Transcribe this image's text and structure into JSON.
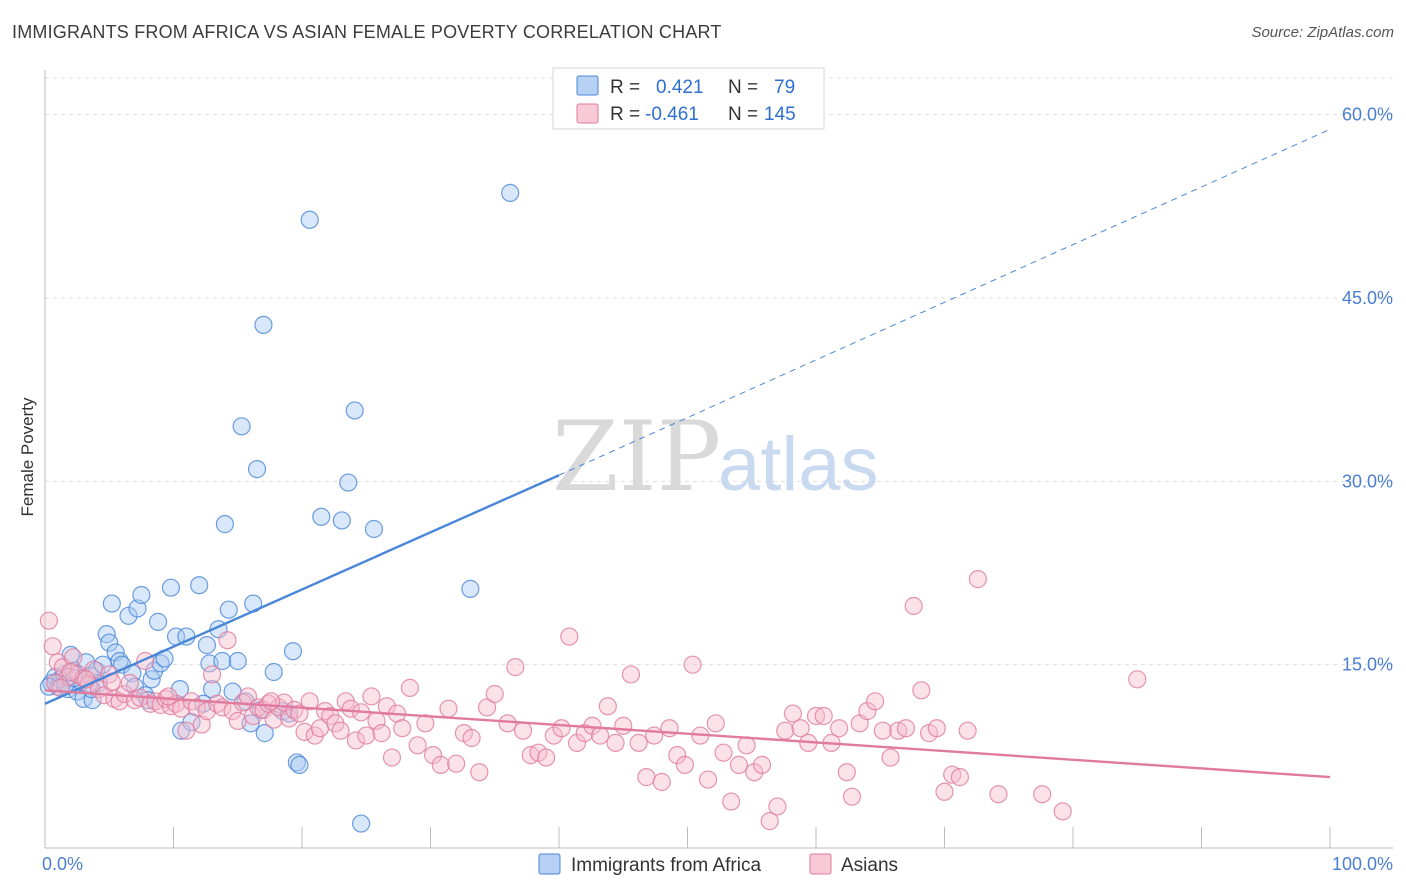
{
  "title": "IMMIGRANTS FROM AFRICA VS ASIAN FEMALE POVERTY CORRELATION CHART",
  "source": "Source: ZipAtlas.com",
  "watermark": {
    "part1": "ZIP",
    "part2": "atlas"
  },
  "legend": {
    "rows": [
      {
        "r_label": "R =",
        "r_value": "0.421",
        "n_label": "N =",
        "n_value": "79",
        "color": "#9ec2ef",
        "stroke": "#4a86d8"
      },
      {
        "r_label": "R =",
        "r_value": "-0.461",
        "n_label": "N =",
        "n_value": "145",
        "color": "#f6b8cb",
        "stroke": "#e07a9e"
      }
    ]
  },
  "bottom_legend": [
    {
      "label": "Immigrants from Africa",
      "color": "#9ec2ef",
      "stroke": "#4a86d8"
    },
    {
      "label": "Asians",
      "color": "#f6b8cb",
      "stroke": "#e07a9e"
    }
  ],
  "chart_data": {
    "type": "scatter",
    "xlabel": "",
    "ylabel": "Female Poverty",
    "xlim": [
      0,
      100
    ],
    "ylim": [
      0,
      63
    ],
    "x_tick_labels": [
      "0.0%",
      "100.0%"
    ],
    "y_ticks": [
      15,
      30,
      45,
      60
    ],
    "y_tick_labels": [
      "15.0%",
      "30.0%",
      "45.0%",
      "60.0%"
    ],
    "grid": true,
    "series": [
      {
        "name": "Immigrants from Africa",
        "color": "#4a86d8",
        "fill": "#a9c9f2",
        "trend": {
          "x0": 0,
          "y0": 11.8,
          "x1": 40,
          "y1": 30.5,
          "dashed_to_x": 100,
          "dashed_to_y": 58.8
        },
        "points": [
          [
            0.5,
            13.5
          ],
          [
            0.8,
            14.0
          ],
          [
            1.0,
            13.2
          ],
          [
            1.2,
            13.8
          ],
          [
            1.5,
            14.2
          ],
          [
            1.8,
            13.0
          ],
          [
            2.0,
            15.8
          ],
          [
            2.2,
            14.5
          ],
          [
            2.5,
            12.8
          ],
          [
            2.8,
            13.6
          ],
          [
            3.0,
            12.2
          ],
          [
            3.2,
            15.2
          ],
          [
            3.5,
            14.1
          ],
          [
            3.7,
            12.1
          ],
          [
            4.0,
            14.5
          ],
          [
            4.2,
            13.5
          ],
          [
            4.5,
            15.0
          ],
          [
            4.8,
            17.5
          ],
          [
            5.0,
            16.8
          ],
          [
            5.2,
            20.0
          ],
          [
            5.5,
            16.0
          ],
          [
            5.8,
            15.3
          ],
          [
            6.0,
            15.0
          ],
          [
            6.5,
            19.0
          ],
          [
            6.8,
            14.3
          ],
          [
            7.0,
            13.2
          ],
          [
            7.2,
            19.6
          ],
          [
            7.5,
            20.7
          ],
          [
            7.8,
            12.5
          ],
          [
            8.0,
            12.1
          ],
          [
            8.3,
            13.8
          ],
          [
            8.5,
            14.5
          ],
          [
            8.8,
            18.5
          ],
          [
            9.0,
            15.1
          ],
          [
            9.3,
            15.5
          ],
          [
            9.8,
            21.3
          ],
          [
            10.2,
            17.3
          ],
          [
            10.5,
            13.0
          ],
          [
            10.6,
            9.6
          ],
          [
            11.0,
            17.3
          ],
          [
            11.4,
            10.3
          ],
          [
            12.0,
            21.5
          ],
          [
            12.3,
            11.8
          ],
          [
            12.6,
            16.6
          ],
          [
            12.8,
            15.1
          ],
          [
            13.0,
            13.0
          ],
          [
            13.5,
            17.9
          ],
          [
            13.8,
            15.3
          ],
          [
            14.0,
            26.5
          ],
          [
            14.3,
            19.5
          ],
          [
            14.6,
            12.8
          ],
          [
            15.0,
            15.3
          ],
          [
            15.3,
            34.5
          ],
          [
            15.6,
            12.0
          ],
          [
            16.0,
            10.2
          ],
          [
            16.2,
            20.0
          ],
          [
            16.5,
            31.0
          ],
          [
            16.8,
            11.3
          ],
          [
            17.0,
            42.8
          ],
          [
            17.1,
            9.4
          ],
          [
            17.8,
            14.4
          ],
          [
            18.5,
            11.2
          ],
          [
            19.0,
            11.0
          ],
          [
            19.3,
            16.1
          ],
          [
            19.6,
            7.0
          ],
          [
            19.8,
            6.8
          ],
          [
            20.6,
            51.4
          ],
          [
            21.5,
            27.1
          ],
          [
            23.1,
            26.8
          ],
          [
            23.6,
            29.9
          ],
          [
            24.1,
            35.8
          ],
          [
            24.6,
            2.0
          ],
          [
            25.6,
            26.1
          ],
          [
            33.1,
            21.2
          ],
          [
            36.2,
            53.6
          ],
          [
            0.3,
            13.2
          ],
          [
            1.6,
            13.4
          ],
          [
            2.3,
            13.9
          ],
          [
            3.6,
            13.0
          ]
        ]
      },
      {
        "name": "Asians",
        "color": "#e07a9e",
        "fill": "#f6bccd",
        "trend": {
          "x0": 0,
          "y0": 12.9,
          "x1": 100,
          "y1": 5.8
        },
        "points": [
          [
            0.3,
            18.6
          ],
          [
            0.6,
            16.5
          ],
          [
            1.0,
            15.2
          ],
          [
            1.4,
            14.8
          ],
          [
            1.8,
            14.0
          ],
          [
            2.2,
            15.6
          ],
          [
            2.6,
            14.2
          ],
          [
            3.0,
            13.9
          ],
          [
            3.4,
            13.4
          ],
          [
            3.8,
            14.6
          ],
          [
            4.2,
            13.0
          ],
          [
            4.6,
            12.5
          ],
          [
            5.0,
            14.2
          ],
          [
            5.4,
            12.2
          ],
          [
            5.8,
            12.0
          ],
          [
            6.2,
            12.6
          ],
          [
            6.6,
            13.5
          ],
          [
            7.0,
            12.1
          ],
          [
            7.4,
            12.3
          ],
          [
            7.8,
            15.3
          ],
          [
            8.2,
            11.8
          ],
          [
            8.6,
            12.0
          ],
          [
            9.0,
            11.7
          ],
          [
            9.4,
            12.2
          ],
          [
            9.8,
            11.6
          ],
          [
            10.2,
            11.8
          ],
          [
            10.6,
            11.4
          ],
          [
            11.0,
            9.6
          ],
          [
            11.4,
            12.0
          ],
          [
            11.8,
            11.5
          ],
          [
            12.2,
            10.1
          ],
          [
            12.6,
            11.2
          ],
          [
            13.0,
            14.2
          ],
          [
            13.4,
            11.8
          ],
          [
            13.8,
            11.5
          ],
          [
            14.2,
            17.0
          ],
          [
            14.6,
            11.2
          ],
          [
            15.0,
            10.4
          ],
          [
            15.4,
            11.9
          ],
          [
            15.8,
            12.4
          ],
          [
            16.2,
            10.8
          ],
          [
            16.6,
            11.5
          ],
          [
            17.0,
            11.3
          ],
          [
            17.4,
            11.8
          ],
          [
            17.8,
            10.5
          ],
          [
            18.2,
            11.5
          ],
          [
            18.6,
            11.9
          ],
          [
            19.0,
            10.6
          ],
          [
            19.4,
            11.3
          ],
          [
            19.8,
            11.0
          ],
          [
            20.2,
            9.5
          ],
          [
            20.6,
            12.0
          ],
          [
            21.0,
            9.2
          ],
          [
            21.4,
            9.8
          ],
          [
            21.8,
            11.2
          ],
          [
            22.2,
            10.8
          ],
          [
            22.6,
            10.2
          ],
          [
            23.0,
            9.6
          ],
          [
            23.4,
            12.0
          ],
          [
            23.8,
            11.4
          ],
          [
            24.2,
            8.8
          ],
          [
            24.6,
            11.1
          ],
          [
            25.0,
            9.2
          ],
          [
            25.4,
            12.4
          ],
          [
            25.8,
            10.4
          ],
          [
            26.2,
            9.4
          ],
          [
            26.6,
            11.6
          ],
          [
            27.0,
            7.4
          ],
          [
            27.4,
            11.0
          ],
          [
            27.8,
            9.8
          ],
          [
            28.4,
            13.1
          ],
          [
            29.0,
            8.4
          ],
          [
            29.6,
            10.2
          ],
          [
            30.2,
            7.6
          ],
          [
            30.8,
            6.8
          ],
          [
            31.4,
            11.4
          ],
          [
            32.0,
            6.9
          ],
          [
            32.6,
            9.4
          ],
          [
            33.2,
            9.0
          ],
          [
            33.8,
            6.2
          ],
          [
            34.4,
            11.5
          ],
          [
            35.0,
            12.6
          ],
          [
            36.0,
            10.2
          ],
          [
            36.6,
            14.8
          ],
          [
            37.2,
            9.6
          ],
          [
            37.8,
            7.6
          ],
          [
            38.4,
            7.8
          ],
          [
            39.0,
            7.4
          ],
          [
            39.6,
            9.2
          ],
          [
            40.2,
            9.8
          ],
          [
            40.8,
            17.3
          ],
          [
            41.4,
            8.6
          ],
          [
            42.0,
            9.4
          ],
          [
            42.6,
            10.0
          ],
          [
            43.2,
            9.2
          ],
          [
            43.8,
            11.6
          ],
          [
            44.4,
            8.6
          ],
          [
            45.0,
            10.0
          ],
          [
            45.6,
            14.2
          ],
          [
            46.2,
            8.6
          ],
          [
            46.8,
            5.8
          ],
          [
            47.4,
            9.2
          ],
          [
            48.0,
            5.4
          ],
          [
            48.6,
            9.8
          ],
          [
            49.2,
            7.6
          ],
          [
            49.8,
            6.8
          ],
          [
            50.4,
            15.0
          ],
          [
            51.0,
            9.2
          ],
          [
            51.6,
            5.6
          ],
          [
            52.2,
            10.2
          ],
          [
            52.8,
            7.8
          ],
          [
            53.4,
            3.8
          ],
          [
            54.0,
            6.8
          ],
          [
            54.6,
            8.4
          ],
          [
            55.2,
            6.2
          ],
          [
            55.8,
            6.8
          ],
          [
            56.4,
            2.2
          ],
          [
            57.0,
            3.4
          ],
          [
            57.6,
            9.6
          ],
          [
            58.2,
            11.0
          ],
          [
            58.8,
            9.8
          ],
          [
            59.4,
            8.6
          ],
          [
            60.0,
            10.8
          ],
          [
            60.6,
            10.8
          ],
          [
            61.2,
            8.6
          ],
          [
            61.8,
            9.8
          ],
          [
            62.4,
            6.2
          ],
          [
            62.8,
            4.2
          ],
          [
            63.4,
            10.2
          ],
          [
            64.0,
            11.2
          ],
          [
            64.6,
            12.0
          ],
          [
            65.2,
            9.6
          ],
          [
            65.8,
            7.4
          ],
          [
            66.4,
            9.6
          ],
          [
            67.0,
            9.8
          ],
          [
            67.6,
            19.8
          ],
          [
            68.2,
            12.9
          ],
          [
            68.8,
            9.4
          ],
          [
            69.4,
            9.8
          ],
          [
            70.0,
            4.6
          ],
          [
            70.6,
            6.0
          ],
          [
            71.2,
            5.8
          ],
          [
            71.8,
            9.6
          ],
          [
            72.6,
            22.0
          ],
          [
            74.2,
            4.4
          ],
          [
            77.6,
            4.4
          ],
          [
            79.2,
            3.0
          ],
          [
            85.0,
            13.8
          ],
          [
            3.2,
            13.8
          ],
          [
            0.8,
            13.5
          ],
          [
            1.2,
            13.1
          ],
          [
            2.0,
            14.4
          ],
          [
            5.2,
            13.6
          ],
          [
            9.6,
            12.4
          ],
          [
            17.6,
            12.0
          ]
        ]
      }
    ]
  }
}
